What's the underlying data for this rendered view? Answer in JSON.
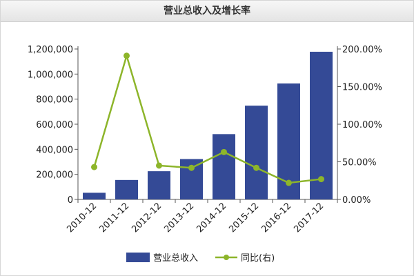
{
  "chart_data": {
    "type": "bar",
    "title": "营业总收入及增长率",
    "categories": [
      "2010-12",
      "2011-12",
      "2012-12",
      "2013-12",
      "2014-12",
      "2015-12",
      "2016-12",
      "2017-12"
    ],
    "series": [
      {
        "name": "营业总收入",
        "type": "bar",
        "axis": "left",
        "color": "#344a96",
        "values": [
          53000,
          155000,
          225000,
          322000,
          521000,
          748000,
          925000,
          1178000
        ]
      },
      {
        "name": "同比(右)",
        "type": "line",
        "axis": "right",
        "color": "#8db52a",
        "values": [
          43,
          191,
          45,
          42,
          63,
          42,
          22,
          27
        ]
      }
    ],
    "y_left": {
      "min": 0,
      "max": 1200000,
      "step": 200000,
      "tick_labels": [
        "0",
        "200,000",
        "400,000",
        "600,000",
        "800,000",
        "1,000,000",
        "1,200,000"
      ]
    },
    "y_right": {
      "min": 0,
      "max": 200,
      "step": 50,
      "tick_labels": [
        "0.00%",
        "50.00%",
        "100.00%",
        "150.00%",
        "200.00%"
      ]
    },
    "grid": false,
    "legend": "bottom"
  }
}
